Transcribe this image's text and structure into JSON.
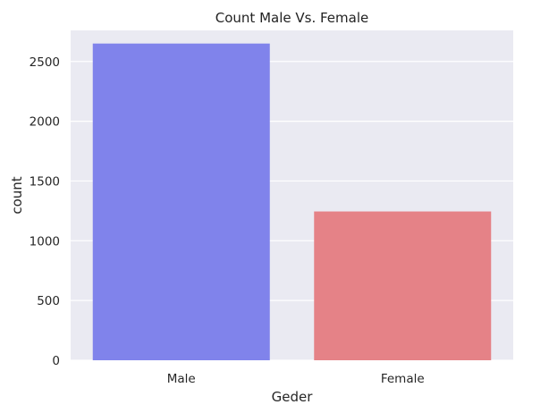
{
  "chart_data": {
    "type": "bar",
    "title": "Count Male Vs. Female",
    "xlabel": "Geder",
    "ylabel": "count",
    "categories": [
      "Male",
      "Female"
    ],
    "values": [
      2650,
      1245
    ],
    "ylim": [
      0,
      2760
    ],
    "yticks": [
      0,
      500,
      1000,
      1500,
      2000,
      2500
    ],
    "colors": [
      "#8083eb",
      "#e58287"
    ],
    "background": "#eaeaf2",
    "grid": true
  }
}
